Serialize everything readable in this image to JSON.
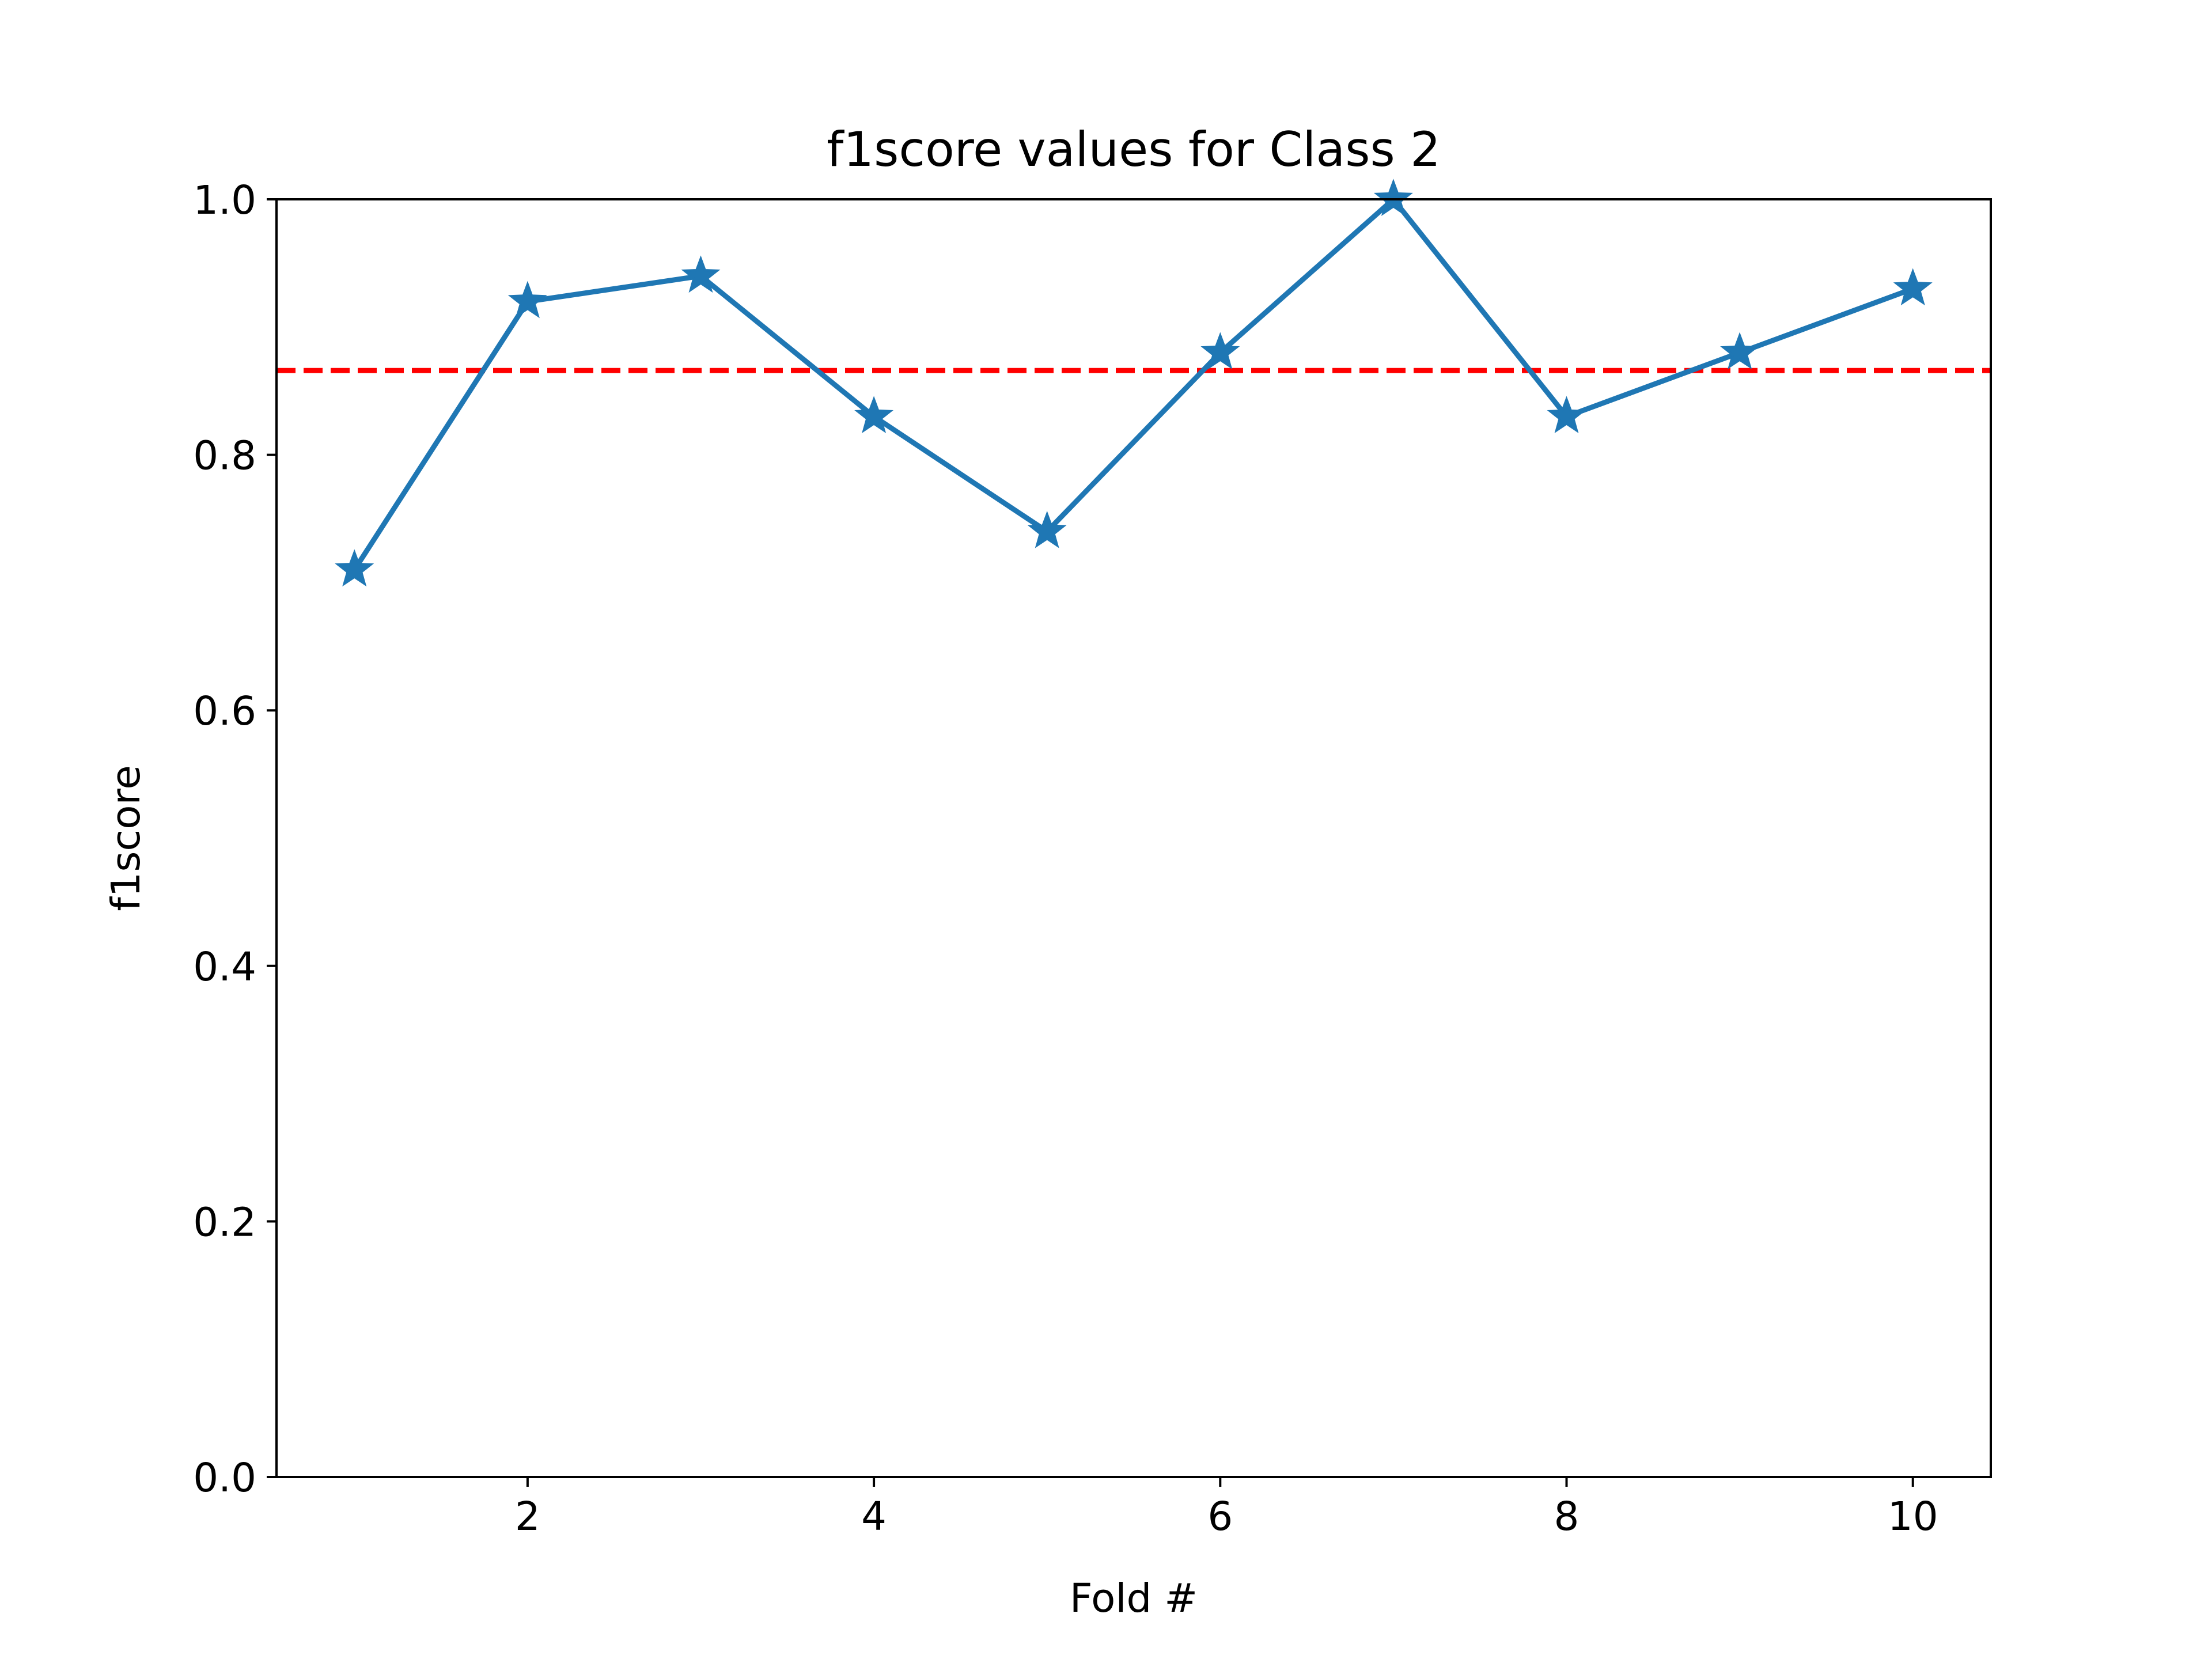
{
  "chart_data": {
    "type": "line",
    "title": "f1score values for Class 2",
    "xlabel": "Fold #",
    "ylabel": "f1score",
    "x": [
      1,
      2,
      3,
      4,
      5,
      6,
      7,
      8,
      9,
      10
    ],
    "series": [
      {
        "values": [
          0.71,
          0.92,
          0.94,
          0.83,
          0.74,
          0.88,
          1.0,
          0.83,
          0.88,
          0.93
        ],
        "color": "#1f77b4",
        "marker": "star"
      }
    ],
    "reference_line": {
      "y": 0.866,
      "color": "#ff0000",
      "style": "dashed"
    },
    "xlim": [
      0.55,
      10.45
    ],
    "ylim": [
      0.0,
      1.0
    ],
    "xticks": [
      2,
      4,
      6,
      8,
      10
    ],
    "yticks": [
      0.0,
      0.2,
      0.4,
      0.6,
      0.8,
      1.0
    ],
    "xtick_labels": [
      "2",
      "4",
      "6",
      "8",
      "10"
    ],
    "ytick_labels": [
      "0.0",
      "0.2",
      "0.4",
      "0.6",
      "0.8",
      "1.0"
    ],
    "grid": false,
    "legend": "none"
  }
}
